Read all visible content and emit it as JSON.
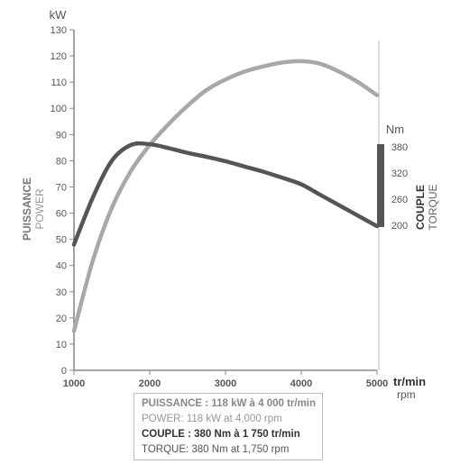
{
  "chart_data": {
    "type": "line",
    "x": [
      1000,
      1250,
      1500,
      1750,
      2000,
      2250,
      2500,
      2750,
      3000,
      3250,
      3500,
      3750,
      4000,
      4250,
      4500,
      4750,
      5000
    ],
    "xlim": [
      1000,
      5000
    ],
    "x_ticks": [
      "1000",
      "2000",
      "3000",
      "4000",
      "5000"
    ],
    "x_unit": {
      "primary": "tr/min",
      "secondary": "rpm"
    },
    "left_axis": {
      "unit": "kW",
      "ylim": [
        0,
        130
      ],
      "ticks": [
        "0",
        "10",
        "20",
        "30",
        "40",
        "50",
        "60",
        "70",
        "80",
        "90",
        "100",
        "110",
        "120",
        "130"
      ],
      "label_primary": "PUISSANCE",
      "label_secondary": "POWER"
    },
    "right_axis": {
      "unit": "Nm",
      "ticks": [
        "380",
        "320",
        "260",
        "200"
      ],
      "tick_values": [
        380,
        320,
        260,
        200
      ],
      "label_primary": "COUPLE",
      "label_secondary": "TORQUE"
    },
    "series": [
      {
        "key": "power",
        "color": "#a8a8a8",
        "values": [
          15,
          42,
          62,
          76,
          86,
          94,
          101,
          107,
          111,
          114,
          116,
          117.5,
          118,
          117,
          114,
          110,
          105
        ]
      },
      {
        "key": "torque",
        "color": "#555555",
        "values": [
          48,
          66,
          80,
          86,
          86.3,
          84.8,
          83,
          81.5,
          79.8,
          77.8,
          75.8,
          73.5,
          71,
          67,
          63,
          59,
          55
        ]
      }
    ],
    "torque_bar_color": "#555555",
    "grid": false
  },
  "legend": {
    "line1": "PUISSANCE : 118 kW à 4 000 tr/min",
    "line2": "POWER: 118 kW at 4,000 rpm",
    "line3": "COUPLE : 380 Nm à 1 750 tr/min",
    "line4": "TORQUE: 380 Nm at 1,750 rpm"
  }
}
